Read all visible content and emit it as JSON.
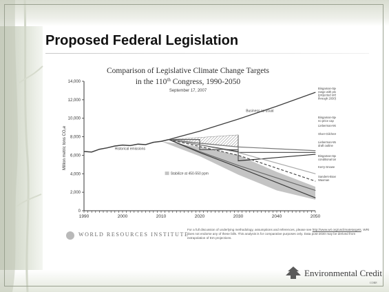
{
  "slide": {
    "title": "Proposed Federal Legislation"
  },
  "chart_data": {
    "type": "line",
    "title": "Comparison of Legislative Climate Change Targets",
    "title_line2_pre": "in the 110",
    "title_line2_sup": "th",
    "title_line2_post": " Congress, 1990-2050",
    "subtitle": "September 17, 2007",
    "ylabel": "Million metric tons CO₂e",
    "xlabel": "",
    "xlim": [
      1990,
      2050
    ],
    "ylim": [
      0,
      14000
    ],
    "x_ticks": [
      1990,
      2000,
      2010,
      2020,
      2030,
      2040,
      2050
    ],
    "y_ticks": [
      0,
      2000,
      4000,
      6000,
      8000,
      10000,
      12000,
      14000
    ],
    "y_tick_labels": [
      "0",
      "2,000",
      "4,000",
      "6,000",
      "8,000",
      "10,000",
      "12,000",
      "14,000"
    ],
    "grid": false,
    "colors": {
      "dark": "#3d3d3d",
      "mid": "#7a7a7a",
      "light": "#a9a9a9",
      "band": "#c4c4c4"
    },
    "series": [
      {
        "name": "Historical emissions",
        "style": "solid",
        "color": "#3d3d3d",
        "width": 1.5,
        "x": [
          1990,
          1992,
          1994,
          1996,
          1998,
          2000,
          2002,
          2004,
          2006,
          2008,
          2010,
          2012
        ],
        "values": [
          6400,
          6350,
          6650,
          6800,
          7000,
          7100,
          7050,
          7200,
          7150,
          7400,
          7500,
          7700
        ]
      },
      {
        "name": "Business as usual",
        "style": "solid",
        "color": "#3d3d3d",
        "width": 1.3,
        "x": [
          2012,
          2020,
          2030,
          2040,
          2050
        ],
        "values": [
          7700,
          8600,
          9900,
          11300,
          12800
        ]
      },
      {
        "name": "Bingaman-Specter no price cap",
        "style": "solid",
        "color": "#7a7a7a",
        "width": 1.2,
        "x": [
          2012,
          2020,
          2030,
          2050
        ],
        "values": [
          7700,
          7300,
          6900,
          6500
        ]
      },
      {
        "name": "Lieberman-McCain",
        "style": "solid",
        "color": "#5a5a5a",
        "width": 1.2,
        "x": [
          2012,
          2020,
          2020,
          2030,
          2030,
          2050
        ],
        "values": [
          7700,
          7700,
          6600,
          6600,
          6300,
          6300
        ]
      },
      {
        "name": "Olver-Gilchrest",
        "style": "solid",
        "color": "#2e2e2e",
        "width": 1.2,
        "x": [
          2012,
          2030,
          2030,
          2050
        ],
        "values": [
          7700,
          6400,
          5400,
          6100
        ]
      },
      {
        "name": "Lieberman-Warner draft outline",
        "style": "solid",
        "color": "#a9a9a9",
        "width": 1.2,
        "x": [
          2012,
          2020,
          2030,
          2050
        ],
        "values": [
          7700,
          7100,
          6300,
          4000
        ]
      },
      {
        "name": "Bingaman-Specter conditional target",
        "style": "dashed",
        "color": "#4a4a4a",
        "width": 1.2,
        "x": [
          2012,
          2030,
          2050
        ],
        "values": [
          7700,
          6000,
          3200
        ]
      },
      {
        "name": "Kerry-Snowe",
        "style": "solid",
        "color": "#6a6a6a",
        "width": 1.2,
        "x": [
          2012,
          2020,
          2030,
          2050
        ],
        "values": [
          7700,
          6400,
          4900,
          2200
        ]
      },
      {
        "name": "Sanders-Boxer, Waxman",
        "style": "solid",
        "color": "#3d3d3d",
        "width": 1.2,
        "x": [
          2012,
          2020,
          2030,
          2050
        ],
        "values": [
          7700,
          6300,
          4700,
          1400
        ]
      }
    ],
    "bands": [
      {
        "name": "Stabilize at 450-550 ppm",
        "fill": "#c4c4c4",
        "x": [
          2010,
          2020,
          2030,
          2040,
          2050
        ],
        "upper": [
          7500,
          6900,
          6000,
          4200,
          2600
        ],
        "lower": [
          7500,
          5900,
          3900,
          2200,
          1200
        ]
      },
      {
        "name": "Bingaman-Specter range with price cap (projected only through 2030)",
        "pattern": "hatch",
        "x": [
          2012,
          2030
        ],
        "upper": [
          7700,
          8200
        ],
        "lower": [
          7700,
          6900
        ]
      }
    ],
    "annotations": {
      "historical": "Historical emissions",
      "bau": "Business as usual",
      "stabilize": "Stabilize at 450-550 ppm"
    },
    "legend": {
      "placement": "right",
      "entries": [
        {
          "id": "bs_range",
          "lines": [
            "Bingaman-Specter",
            "range with price cap",
            "(projected only",
            "through 2030)"
          ],
          "swatch": "hatch"
        },
        {
          "id": "bs_nocap",
          "lines": [
            "Bingaman-Specter",
            "no price cap"
          ],
          "swatch": "solid",
          "color": "#7a7a7a"
        },
        {
          "id": "lm",
          "lines": [
            "Lieberman-McCain"
          ],
          "swatch": "solid",
          "color": "#5a5a5a"
        },
        {
          "id": "og",
          "lines": [
            "Olver-Gilchrest"
          ],
          "swatch": "solid",
          "color": "#2e2e2e"
        },
        {
          "id": "lw",
          "lines": [
            "Lieberman-Warner",
            "draft outline"
          ],
          "swatch": "solid",
          "color": "#a9a9a9"
        },
        {
          "id": "bs_cond",
          "lines": [
            "Bingaman-Specter",
            "conditional target"
          ],
          "swatch": "dashed",
          "color": "#4a4a4a"
        },
        {
          "id": "ks",
          "lines": [
            "Kerry-Snowe"
          ],
          "swatch": "solid",
          "color": "#6a6a6a"
        },
        {
          "id": "sb",
          "lines": [
            "Sanders-Boxer,",
            "Waxman"
          ],
          "swatch": "solid",
          "color": "#3d3d3d"
        }
      ]
    }
  },
  "footer": {
    "wri": "WORLD RESOURCES INSTITUTE",
    "note_pre": "For a full discussion of underlying methodology, assumptions and references, please see ",
    "note_link": "http://www.wri.org/usclimatetargets",
    "note_post": ". WRI does not endorse any of these bills. This analysis is for comparative purposes only. Data post-2030 may be derived from extrapolation of EIA projections."
  },
  "logo": {
    "text": "Environmental Credit",
    "corp": "CORP."
  }
}
